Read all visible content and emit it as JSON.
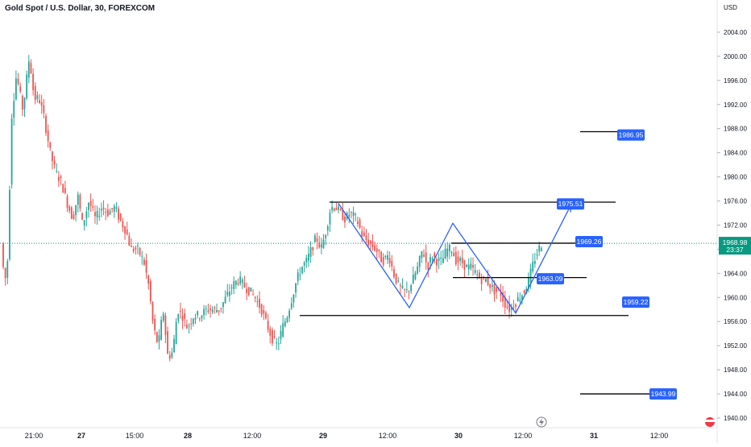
{
  "header": {
    "title": "Gold Spot / U.S. Dollar, 30, FOREXCOM",
    "currency": "USD"
  },
  "chart_data": {
    "type": "candlestick",
    "symbol": "Gold Spot / U.S. Dollar",
    "interval": "30",
    "source": "FOREXCOM",
    "ylim": [
      1938,
      2010
    ],
    "y_ticks": [
      "2004.00",
      "2000.00",
      "1996.00",
      "1992.00",
      "1988.00",
      "1984.00",
      "1980.00",
      "1976.00",
      "1972.00",
      "1968.00",
      "1964.00",
      "1960.00",
      "1956.00",
      "1952.00",
      "1948.00",
      "1944.00",
      "1940.00"
    ],
    "x_ticks": [
      {
        "label": "21:00",
        "x": 42,
        "bold": false
      },
      {
        "label": "27",
        "x": 101,
        "bold": true
      },
      {
        "label": "15:00",
        "x": 167,
        "bold": false
      },
      {
        "label": "28",
        "x": 233,
        "bold": true
      },
      {
        "label": "12:00",
        "x": 313,
        "bold": false
      },
      {
        "label": "29",
        "x": 401,
        "bold": true
      },
      {
        "label": "12:00",
        "x": 481,
        "bold": false
      },
      {
        "label": "30",
        "x": 569,
        "bold": true
      },
      {
        "label": "12:00",
        "x": 649,
        "bold": false
      },
      {
        "label": "31",
        "x": 737,
        "bold": true
      },
      {
        "label": "12:00",
        "x": 818,
        "bold": false
      }
    ],
    "current_price": {
      "value": 1968.98,
      "label": "1968.98",
      "countdown": "23:37"
    },
    "horizontal_levels": [
      {
        "value": 1987.5,
        "x1": 720,
        "x2": 797
      },
      {
        "value": 1975.8,
        "x1": 409,
        "x2": 764
      },
      {
        "value": 1969.0,
        "x1": 560,
        "x2": 742
      },
      {
        "value": 1963.3,
        "x1": 562,
        "x2": 728
      },
      {
        "value": 1957.0,
        "x1": 372,
        "x2": 780
      },
      {
        "value": 1944.0,
        "x1": 720,
        "x2": 808
      }
    ],
    "price_labels": [
      {
        "text": "1986.95",
        "value": 1986.95,
        "x": 766
      },
      {
        "text": "1975.51",
        "value": 1975.51,
        "x": 691
      },
      {
        "text": "1969.26",
        "value": 1969.26,
        "x": 714
      },
      {
        "text": "1963.09",
        "value": 1963.09,
        "x": 666
      },
      {
        "text": "1959.22",
        "value": 1959.22,
        "x": 772
      },
      {
        "text": "1943.99",
        "value": 1943.99,
        "x": 806
      }
    ],
    "pattern_path": [
      [
        420,
        1975.6
      ],
      [
        508,
        1958.3
      ],
      [
        562,
        1972.3
      ],
      [
        640,
        1957.4
      ],
      [
        708,
        1975.2
      ]
    ],
    "colors": {
      "up": "#26a69a",
      "down": "#ef5350",
      "pattern": "#2962ff",
      "label_bg": "#2962ff",
      "level": "#000000",
      "current": "#089981"
    }
  }
}
